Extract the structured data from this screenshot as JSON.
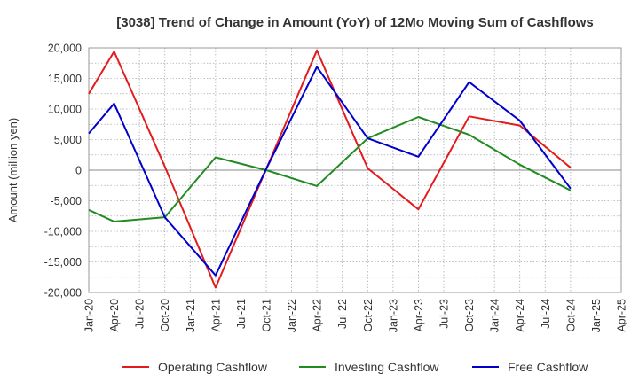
{
  "chart_data": {
    "type": "line",
    "title": "[3038]  Trend of Change in Amount (YoY) of 12Mo Moving Sum of Cashflows",
    "xlabel": "",
    "ylabel": "Amount (million yen)",
    "ylim": [
      -20000,
      20000
    ],
    "yticks": [
      20000,
      15000,
      10000,
      5000,
      0,
      -5000,
      -10000,
      -15000,
      -20000
    ],
    "ytick_labels": [
      "20,000",
      "15,000",
      "10,000",
      "5,000",
      "0",
      "-5,000",
      "-10,000",
      "-15,000",
      "-20,000"
    ],
    "categories": [
      "Jan-20",
      "Apr-20",
      "Jul-20",
      "Oct-20",
      "Jan-21",
      "Apr-21",
      "Jul-21",
      "Oct-21",
      "Jan-22",
      "Apr-22",
      "Jul-22",
      "Oct-22",
      "Jan-23",
      "Apr-23",
      "Jul-23",
      "Oct-23",
      "Jan-24",
      "Apr-24",
      "Jul-24",
      "Oct-24",
      "Jan-25",
      "Apr-25"
    ],
    "grid": true,
    "legend_position": "bottom",
    "series": [
      {
        "name": "Operating Cashflow",
        "color": "#e41a1c",
        "points": [
          [
            0,
            12500
          ],
          [
            1,
            19400
          ],
          [
            3,
            600
          ],
          [
            5,
            -19200
          ],
          [
            7,
            200
          ],
          [
            9,
            19600
          ],
          [
            11,
            300
          ],
          [
            13,
            -6400
          ],
          [
            15,
            8800
          ],
          [
            17,
            7300
          ],
          [
            19,
            400
          ]
        ]
      },
      {
        "name": "Investing Cashflow",
        "color": "#228b22",
        "points": [
          [
            0,
            -6500
          ],
          [
            1,
            -8400
          ],
          [
            3,
            -7700
          ],
          [
            5,
            2100
          ],
          [
            7,
            0
          ],
          [
            9,
            -2600
          ],
          [
            11,
            5200
          ],
          [
            13,
            8700
          ],
          [
            15,
            5800
          ],
          [
            17,
            900
          ],
          [
            19,
            -3300
          ]
        ]
      },
      {
        "name": "Free Cashflow",
        "color": "#0000cd",
        "points": [
          [
            0,
            6000
          ],
          [
            1,
            10900
          ],
          [
            3,
            -7700
          ],
          [
            5,
            -17200
          ],
          [
            7,
            200
          ],
          [
            9,
            16900
          ],
          [
            11,
            5200
          ],
          [
            13,
            2200
          ],
          [
            15,
            14400
          ],
          [
            17,
            8100
          ],
          [
            19,
            -3000
          ]
        ]
      }
    ]
  }
}
